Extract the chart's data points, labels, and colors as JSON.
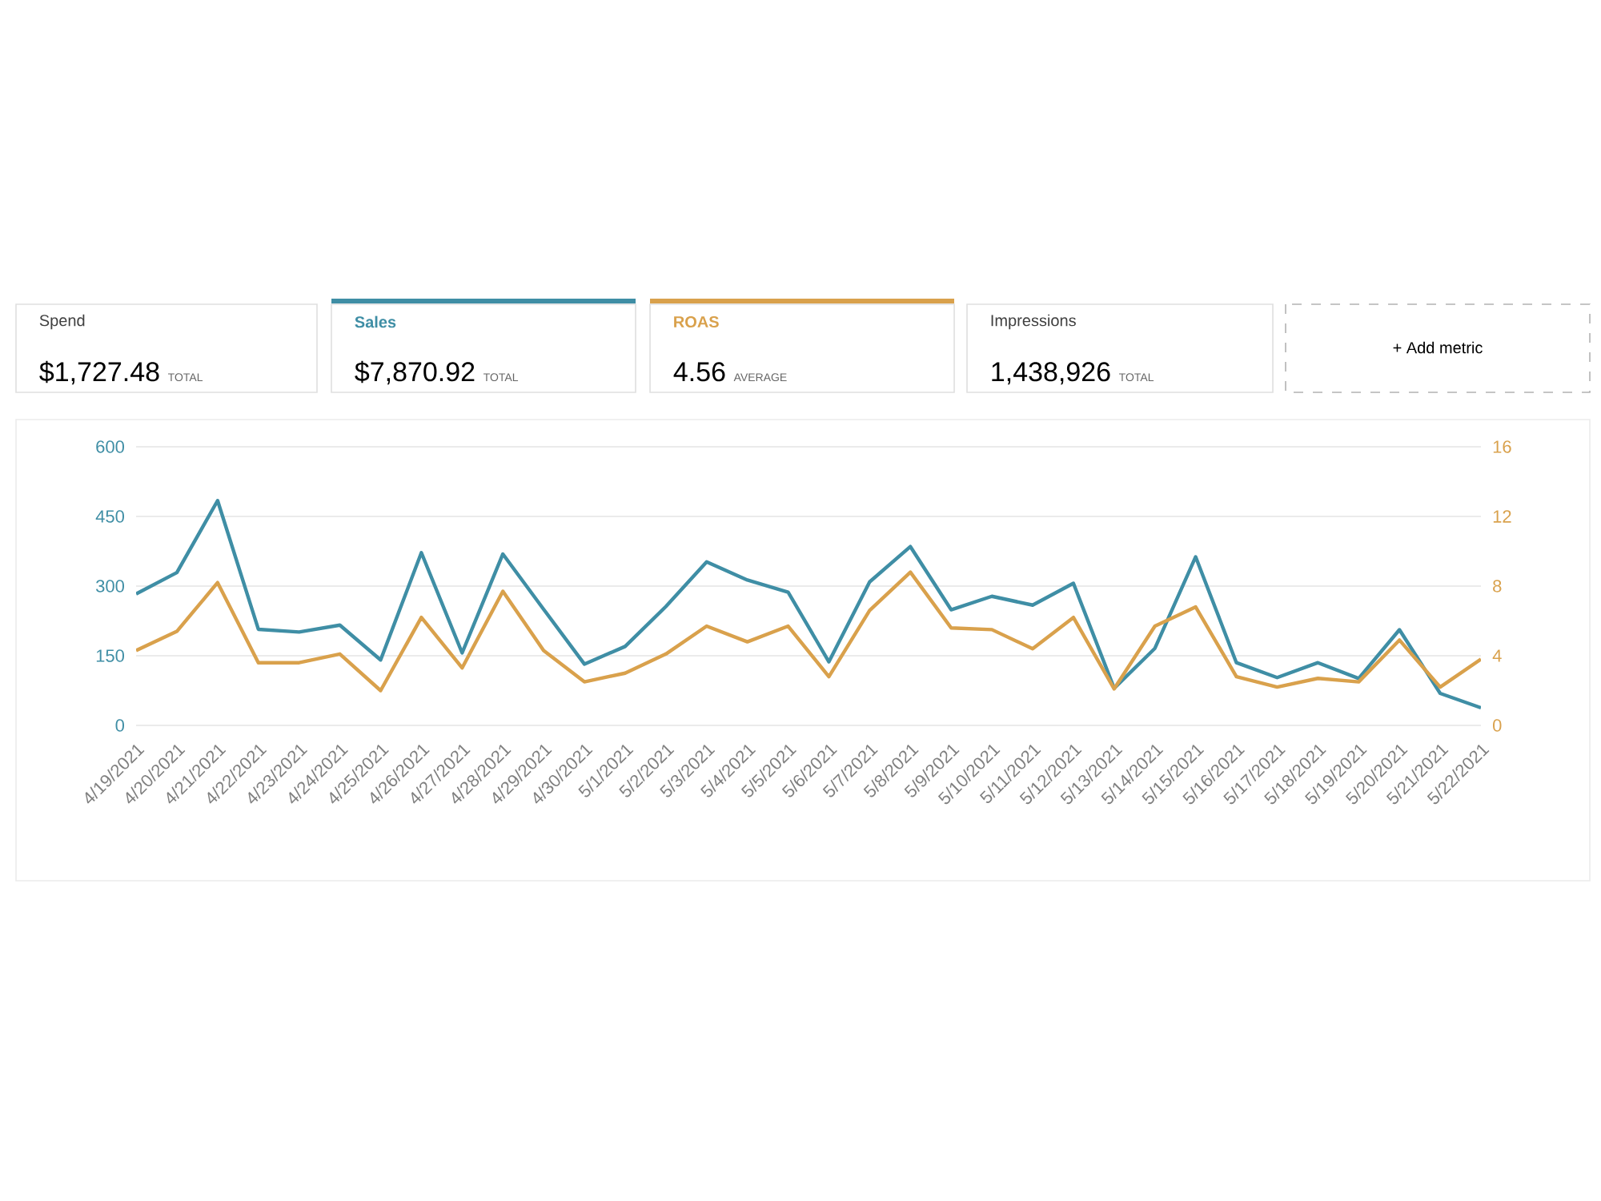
{
  "chart_data": {
    "type": "line",
    "categories": [
      "4/19/2021",
      "4/20/2021",
      "4/21/2021",
      "4/22/2021",
      "4/23/2021",
      "4/24/2021",
      "4/25/2021",
      "4/26/2021",
      "4/27/2021",
      "4/28/2021",
      "4/29/2021",
      "4/30/2021",
      "5/1/2021",
      "5/2/2021",
      "5/3/2021",
      "5/4/2021",
      "5/5/2021",
      "5/6/2021",
      "5/7/2021",
      "5/8/2021",
      "5/9/2021",
      "5/10/2021",
      "5/11/2021",
      "5/12/2021",
      "5/13/2021",
      "5/14/2021",
      "5/15/2021",
      "5/16/2021",
      "5/17/2021",
      "5/18/2021",
      "5/19/2021",
      "5/20/2021",
      "5/21/2021",
      "5/22/2021"
    ],
    "series": [
      {
        "name": "Sales",
        "color": "#3f8ea5",
        "values": [
          283,
          329,
          484,
          207,
          201,
          216,
          141,
          372,
          156,
          369,
          250,
          132,
          170,
          256,
          352,
          313,
          287,
          137,
          309,
          385,
          249,
          278,
          259,
          306,
          80,
          166,
          363,
          135,
          103,
          135,
          101,
          206,
          69,
          38
        ]
      },
      {
        "name": "ROAS",
        "color": "#d9a14c",
        "axis": "y2",
        "values": [
          4.3,
          5.4,
          8.2,
          3.6,
          3.6,
          4.1,
          2.0,
          6.2,
          3.3,
          7.7,
          4.3,
          2.5,
          3.0,
          4.1,
          5.7,
          4.8,
          5.7,
          2.8,
          6.6,
          8.8,
          5.6,
          5.5,
          4.4,
          6.2,
          2.1,
          5.7,
          6.8,
          2.8,
          2.2,
          2.7,
          2.5,
          4.9,
          2.2,
          3.8
        ]
      }
    ],
    "ylim": [
      0,
      600
    ],
    "yticks": [
      0,
      150,
      300,
      450,
      600
    ],
    "y2lim": [
      0,
      16
    ],
    "y2ticks": [
      0,
      4,
      8,
      12,
      16
    ],
    "grid": "y",
    "legend": "top",
    "annotations": [
      "Spend",
      "$1,727.48",
      "TOTAL",
      "$7,870.92",
      "TOTAL",
      "4.56",
      "AVERAGE",
      "Impressions",
      "1,438,926",
      "TOTAL",
      "+ Add metric"
    ]
  }
}
